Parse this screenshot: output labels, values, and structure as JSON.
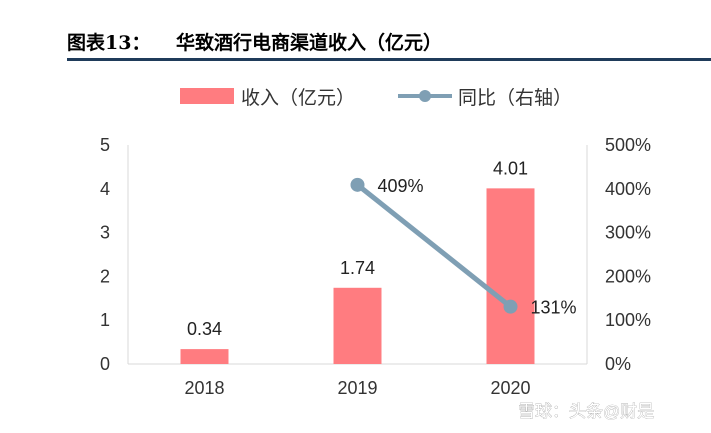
{
  "figure": {
    "label": "图表13：",
    "title": "华致酒行电商渠道收入（亿元）"
  },
  "watermark": "雪球：头条@财是",
  "colors": {
    "bar": "#ff7c80",
    "line": "#7f9fb4",
    "header_rule": "#1f3b5a",
    "axis": "#d9d9d9"
  },
  "chart_data": {
    "type": "bar",
    "categories": [
      "2018",
      "2019",
      "2020"
    ],
    "series": [
      {
        "name": "收入（亿元）",
        "type": "bar",
        "axis": "left",
        "values": [
          0.34,
          1.74,
          4.01
        ],
        "labels": [
          "0.34",
          "1.74",
          "4.01"
        ]
      },
      {
        "name": "同比（右轴）",
        "type": "line",
        "axis": "right",
        "values": [
          null,
          409,
          131
        ],
        "labels": [
          null,
          "409%",
          "131%"
        ]
      }
    ],
    "y_left": {
      "ylim": [
        0,
        5
      ],
      "ticks": [
        "0",
        "1",
        "2",
        "3",
        "4",
        "5"
      ]
    },
    "y_right": {
      "ylim": [
        0,
        500
      ],
      "ticks": [
        "0%",
        "100%",
        "200%",
        "300%",
        "400%",
        "500%"
      ]
    },
    "legend_position": "top",
    "grid": false
  }
}
